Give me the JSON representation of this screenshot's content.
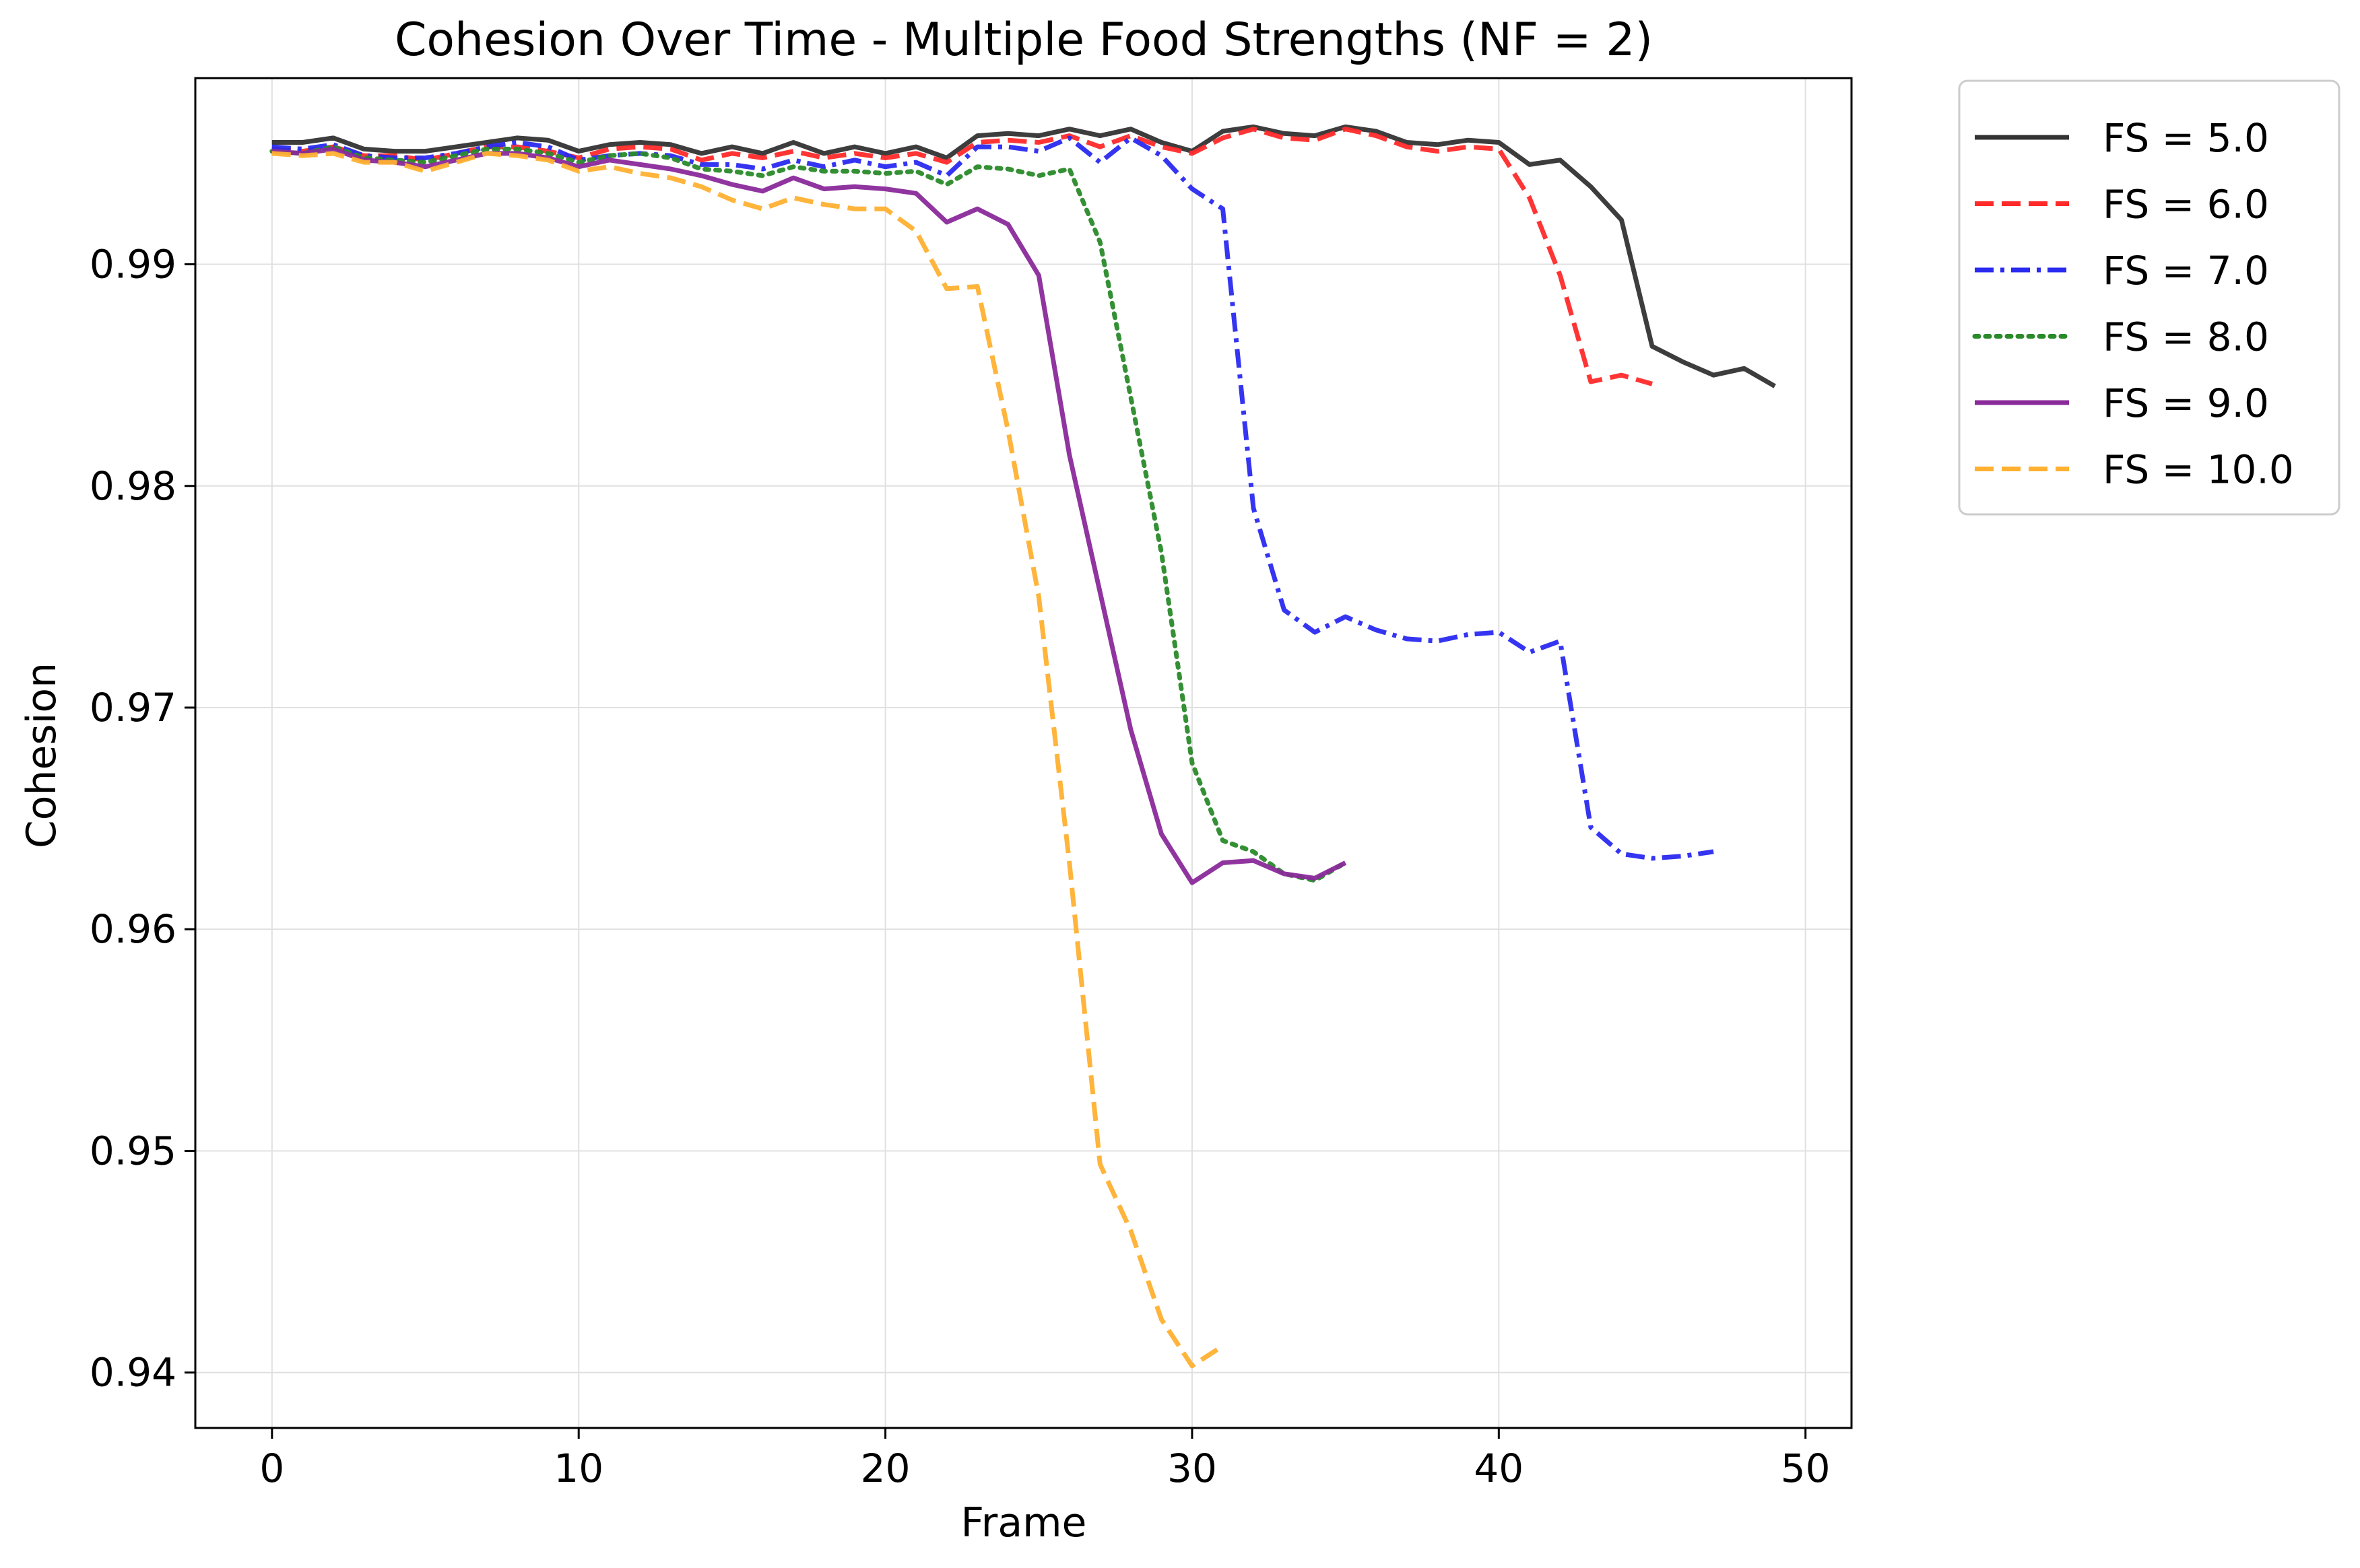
{
  "chart_data": {
    "type": "line",
    "title": "Cohesion Over Time - Multiple Food Strengths (NF = 2)",
    "xlabel": "Frame",
    "ylabel": "Cohesion",
    "xlim": [
      -2.5,
      51.5
    ],
    "ylim": [
      0.9375,
      0.9984
    ],
    "xticks": [
      0,
      10,
      20,
      30,
      40,
      50
    ],
    "xtick_labels": [
      "0",
      "10",
      "20",
      "30",
      "40",
      "50"
    ],
    "yticks": [
      0.94,
      0.95,
      0.96,
      0.97,
      0.98,
      0.99
    ],
    "ytick_labels": [
      "0.94",
      "0.95",
      "0.96",
      "0.97",
      "0.98",
      "0.99"
    ],
    "grid": true,
    "legend_position": "outside-top-right",
    "series": [
      {
        "name": "FS = 5.0",
        "color": "#333333",
        "dash": "solid",
        "x": [
          0,
          1,
          2,
          3,
          4,
          5,
          6,
          7,
          8,
          9,
          10,
          11,
          12,
          13,
          14,
          15,
          16,
          17,
          18,
          19,
          20,
          21,
          22,
          23,
          24,
          25,
          26,
          27,
          28,
          29,
          30,
          31,
          32,
          33,
          34,
          35,
          36,
          37,
          38,
          39,
          40,
          41,
          42,
          43,
          44,
          45,
          46,
          47,
          48,
          49
        ],
        "y": [
          0.9955,
          0.9955,
          0.9957,
          0.9952,
          0.9951,
          0.9951,
          0.9953,
          0.9955,
          0.9957,
          0.9956,
          0.9951,
          0.9954,
          0.9955,
          0.9954,
          0.995,
          0.9953,
          0.995,
          0.9955,
          0.995,
          0.9953,
          0.995,
          0.9953,
          0.9948,
          0.9958,
          0.9959,
          0.9958,
          0.9961,
          0.9958,
          0.9961,
          0.9955,
          0.9951,
          0.996,
          0.9962,
          0.9959,
          0.9958,
          0.9962,
          0.996,
          0.9955,
          0.9954,
          0.9956,
          0.9955,
          0.9945,
          0.9947,
          0.9935,
          0.992,
          0.9863,
          0.9856,
          0.985,
          0.9853,
          0.9845
        ]
      },
      {
        "name": "FS = 6.0",
        "color": "#ff2a2a",
        "dash": "dashed",
        "x": [
          0,
          1,
          2,
          3,
          4,
          5,
          6,
          7,
          8,
          9,
          10,
          11,
          12,
          13,
          14,
          15,
          16,
          17,
          18,
          19,
          20,
          21,
          22,
          23,
          24,
          25,
          26,
          27,
          28,
          29,
          30,
          31,
          32,
          33,
          34,
          35,
          36,
          37,
          38,
          39,
          40,
          41,
          42,
          43,
          44,
          45
        ],
        "y": [
          0.9952,
          0.9951,
          0.9953,
          0.9949,
          0.9949,
          0.9947,
          0.995,
          0.9953,
          0.9953,
          0.9951,
          0.9948,
          0.9952,
          0.9953,
          0.9952,
          0.9947,
          0.995,
          0.9948,
          0.9951,
          0.9948,
          0.995,
          0.9948,
          0.995,
          0.9946,
          0.9955,
          0.9956,
          0.9955,
          0.9958,
          0.9953,
          0.9958,
          0.9953,
          0.995,
          0.9957,
          0.9961,
          0.9957,
          0.9956,
          0.9961,
          0.9958,
          0.9953,
          0.9951,
          0.9953,
          0.9952,
          0.993,
          0.9895,
          0.9847,
          0.985,
          0.9846
        ]
      },
      {
        "name": "FS = 7.0",
        "color": "#2a2af0",
        "dash": "dashdot",
        "x": [
          0,
          1,
          2,
          3,
          4,
          5,
          6,
          7,
          8,
          9,
          10,
          11,
          12,
          13,
          14,
          15,
          16,
          17,
          18,
          19,
          20,
          21,
          22,
          23,
          24,
          25,
          26,
          27,
          28,
          29,
          30,
          31,
          32,
          33,
          34,
          35,
          36,
          37,
          38,
          39,
          40,
          41,
          42,
          43,
          44,
          45,
          46,
          47
        ],
        "y": [
          0.9953,
          0.9952,
          0.9954,
          0.9949,
          0.9948,
          0.9948,
          0.995,
          0.9953,
          0.9955,
          0.9953,
          0.9947,
          0.9949,
          0.995,
          0.9949,
          0.9945,
          0.9945,
          0.9943,
          0.9947,
          0.9944,
          0.9947,
          0.9944,
          0.9946,
          0.994,
          0.9953,
          0.9953,
          0.9951,
          0.9957,
          0.9946,
          0.9957,
          0.9949,
          0.9934,
          0.9925,
          0.979,
          0.9744,
          0.9734,
          0.9741,
          0.9735,
          0.9731,
          0.973,
          0.9733,
          0.9734,
          0.9725,
          0.973,
          0.9646,
          0.9634,
          0.9632,
          0.9633,
          0.9635
        ]
      },
      {
        "name": "FS = 8.0",
        "color": "#2a8a2a",
        "dash": "dotted",
        "x": [
          0,
          1,
          2,
          3,
          4,
          5,
          6,
          7,
          8,
          9,
          10,
          11,
          12,
          13,
          14,
          15,
          16,
          17,
          18,
          19,
          20,
          21,
          22,
          23,
          24,
          25,
          26,
          27,
          28,
          29,
          30,
          31,
          32,
          33,
          34,
          35
        ],
        "y": [
          0.9951,
          0.995,
          0.9953,
          0.9948,
          0.9947,
          0.9946,
          0.9949,
          0.9952,
          0.9952,
          0.995,
          0.9946,
          0.9949,
          0.995,
          0.9948,
          0.9943,
          0.9942,
          0.994,
          0.9944,
          0.9942,
          0.9942,
          0.9941,
          0.9942,
          0.9936,
          0.9944,
          0.9943,
          0.994,
          0.9943,
          0.991,
          0.984,
          0.977,
          0.9675,
          0.964,
          0.9635,
          0.9625,
          0.9622,
          0.963
        ]
      },
      {
        "name": "FS = 9.0",
        "color": "#8a2a9a",
        "dash": "solid",
        "x": [
          0,
          1,
          2,
          3,
          4,
          5,
          6,
          7,
          8,
          9,
          10,
          11,
          12,
          13,
          14,
          15,
          16,
          17,
          18,
          19,
          20,
          21,
          22,
          23,
          24,
          25,
          26,
          27,
          28,
          29,
          30,
          31,
          32,
          33,
          34,
          35
        ],
        "y": [
          0.9951,
          0.995,
          0.9952,
          0.9947,
          0.9946,
          0.9944,
          0.9947,
          0.995,
          0.995,
          0.9948,
          0.9944,
          0.9947,
          0.9945,
          0.9943,
          0.994,
          0.9936,
          0.9933,
          0.9939,
          0.9934,
          0.9935,
          0.9934,
          0.9932,
          0.9919,
          0.9925,
          0.9918,
          0.9895,
          0.9814,
          0.9752,
          0.969,
          0.9643,
          0.9621,
          0.963,
          0.9631,
          0.9625,
          0.9623,
          0.963
        ]
      },
      {
        "name": "FS = 10.0",
        "color": "#ffb030",
        "dash": "dashed",
        "x": [
          0,
          1,
          2,
          3,
          4,
          5,
          6,
          7,
          8,
          9,
          10,
          11,
          12,
          13,
          14,
          15,
          16,
          17,
          18,
          19,
          20,
          21,
          22,
          23,
          24,
          25,
          26,
          27,
          28,
          29,
          30,
          31
        ],
        "y": [
          0.995,
          0.9949,
          0.995,
          0.9946,
          0.9946,
          0.9942,
          0.9946,
          0.995,
          0.9949,
          0.9947,
          0.9942,
          0.9944,
          0.9941,
          0.9939,
          0.9935,
          0.9929,
          0.9925,
          0.993,
          0.9927,
          0.9925,
          0.9925,
          0.9915,
          0.9889,
          0.989,
          0.9825,
          0.975,
          0.963,
          0.9494,
          0.9464,
          0.9424,
          0.9403,
          0.9412
        ]
      }
    ]
  }
}
